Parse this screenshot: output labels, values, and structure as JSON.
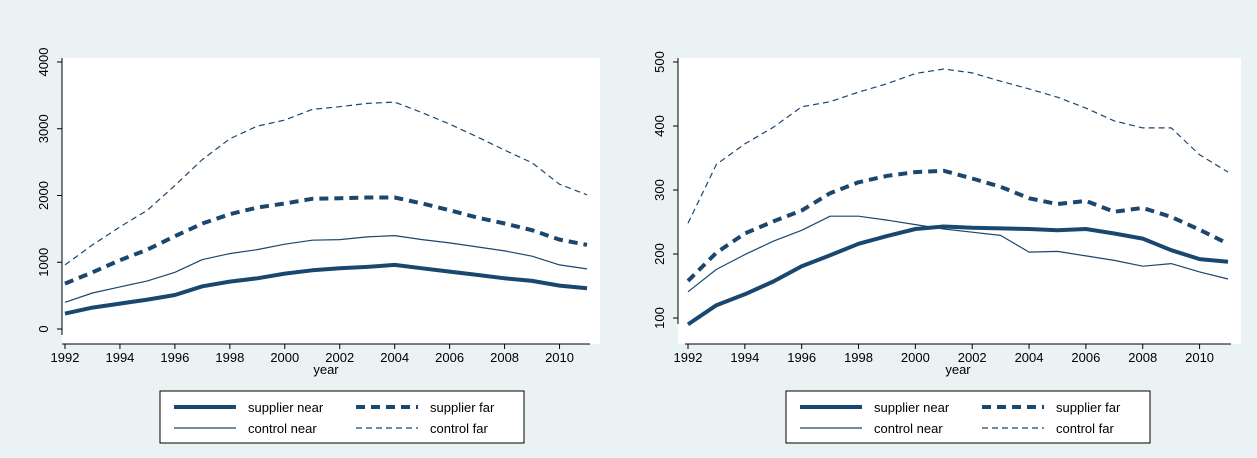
{
  "chart_data": [
    {
      "type": "line",
      "xlabel": "year",
      "ylabel": "",
      "xlim": [
        1992,
        2011
      ],
      "ylim": [
        0,
        4000
      ],
      "xticks": [
        1992,
        1994,
        1996,
        1998,
        2000,
        2002,
        2004,
        2006,
        2008,
        2010
      ],
      "yticks": [
        0,
        1000,
        2000,
        3000,
        4000
      ],
      "x": [
        1992,
        1993,
        1994,
        1995,
        1996,
        1997,
        1998,
        1999,
        2000,
        2001,
        2002,
        2003,
        2004,
        2005,
        2006,
        2007,
        2008,
        2009,
        2010,
        2011
      ],
      "series": [
        {
          "name": "supplier near",
          "style": "thick-solid",
          "values": [
            230,
            320,
            380,
            440,
            510,
            640,
            710,
            760,
            830,
            880,
            910,
            930,
            960,
            910,
            860,
            810,
            760,
            720,
            650,
            610
          ]
        },
        {
          "name": "supplier far",
          "style": "thick-dash",
          "values": [
            680,
            850,
            1030,
            1190,
            1390,
            1580,
            1720,
            1820,
            1880,
            1950,
            1960,
            1970,
            1970,
            1880,
            1780,
            1670,
            1580,
            1480,
            1340,
            1260
          ]
        },
        {
          "name": "control near",
          "style": "thin-solid",
          "values": [
            400,
            540,
            630,
            720,
            850,
            1040,
            1130,
            1190,
            1270,
            1330,
            1340,
            1380,
            1400,
            1340,
            1290,
            1230,
            1170,
            1090,
            960,
            900
          ]
        },
        {
          "name": "control far",
          "style": "thin-dash",
          "values": [
            960,
            1260,
            1530,
            1780,
            2150,
            2540,
            2850,
            3040,
            3130,
            3290,
            3330,
            3380,
            3400,
            3240,
            3070,
            2880,
            2680,
            2490,
            2170,
            2010
          ]
        }
      ],
      "legend": "bottom"
    },
    {
      "type": "line",
      "xlabel": "year",
      "ylabel": "",
      "xlim": [
        1992,
        2011
      ],
      "ylim": [
        90,
        500
      ],
      "xticks": [
        1992,
        1994,
        1996,
        1998,
        2000,
        2002,
        2004,
        2006,
        2008,
        2010
      ],
      "yticks": [
        100,
        200,
        300,
        400,
        500
      ],
      "x": [
        1992,
        1993,
        1994,
        1995,
        1996,
        1997,
        1998,
        1999,
        2000,
        2001,
        2002,
        2003,
        2004,
        2005,
        2006,
        2007,
        2008,
        2009,
        2010,
        2011
      ],
      "series": [
        {
          "name": "supplier near",
          "style": "thick-solid",
          "values": [
            90,
            120,
            137,
            157,
            181,
            198,
            216,
            228,
            239,
            243,
            241,
            240,
            239,
            237,
            239,
            232,
            224,
            206,
            192,
            188
          ]
        },
        {
          "name": "supplier far",
          "style": "thick-dash",
          "values": [
            158,
            202,
            232,
            251,
            268,
            295,
            312,
            322,
            328,
            330,
            318,
            305,
            287,
            278,
            283,
            266,
            272,
            258,
            238,
            216
          ]
        },
        {
          "name": "control near",
          "style": "thin-solid",
          "values": [
            141,
            176,
            199,
            220,
            237,
            259,
            259,
            253,
            246,
            239,
            234,
            229,
            203,
            204,
            197,
            190,
            181,
            185,
            172,
            161
          ]
        },
        {
          "name": "control far",
          "style": "thin-dash",
          "values": [
            248,
            340,
            372,
            398,
            430,
            438,
            453,
            466,
            482,
            489,
            483,
            470,
            458,
            445,
            428,
            408,
            397,
            397,
            355,
            328
          ]
        }
      ],
      "legend": "bottom"
    }
  ]
}
